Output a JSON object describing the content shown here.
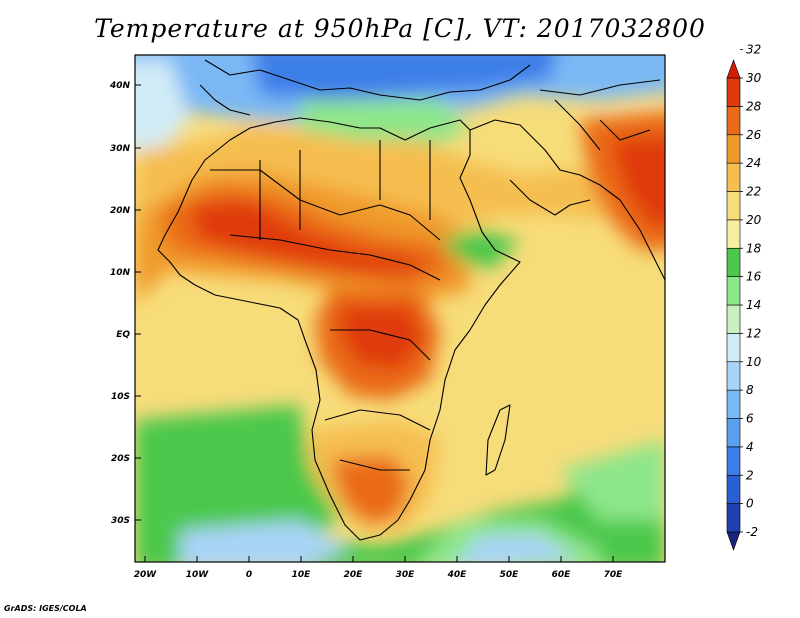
{
  "title": "Temperature at 950hPa [C], VT: 2017032800",
  "credit": "GrADS: IGES/COLA",
  "map": {
    "lat_ticks": [
      "40N",
      "30N",
      "20N",
      "10N",
      "EQ",
      "10S",
      "20S",
      "30S"
    ],
    "lon_ticks": [
      "20W",
      "10W",
      "0",
      "10E",
      "20E",
      "30E",
      "40E",
      "50E",
      "60E",
      "70E"
    ]
  },
  "colorbar": {
    "levels": [
      "-2",
      "0",
      "2",
      "4",
      "6",
      "8",
      "10",
      "12",
      "14",
      "16",
      "18",
      "20",
      "22",
      "24",
      "26",
      "28",
      "30",
      "32"
    ],
    "colors": [
      "#1a237e",
      "#1e40b0",
      "#2b5fd6",
      "#3d7fe8",
      "#5a9ff0",
      "#7ab8f5",
      "#a8d4f7",
      "#d2ecf7",
      "#c8f0c0",
      "#8ee68a",
      "#4cc84c",
      "#f7eea0",
      "#f7dc7a",
      "#f5be50",
      "#f09a2a",
      "#ea6a18",
      "#e03a0c",
      "#d01e05"
    ]
  }
}
